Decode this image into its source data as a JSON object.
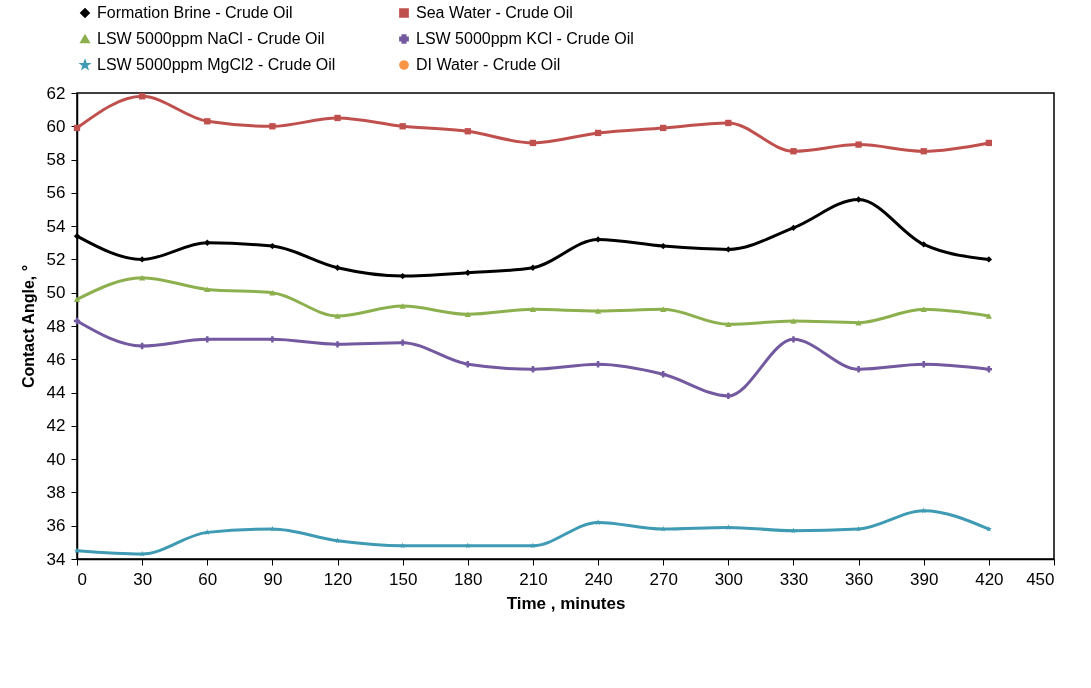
{
  "chart_data": {
    "type": "line",
    "xlabel": "Time , minutes",
    "ylabel": "Contact Angle, °",
    "x": [
      0,
      30,
      60,
      90,
      120,
      150,
      180,
      210,
      240,
      270,
      300,
      330,
      360,
      390,
      420
    ],
    "xlim": [
      0,
      450
    ],
    "xticks": [
      0,
      30,
      60,
      90,
      120,
      150,
      180,
      210,
      240,
      270,
      300,
      330,
      360,
      390,
      420,
      450
    ],
    "ylim": [
      34,
      62
    ],
    "yticks": [
      34,
      36,
      38,
      40,
      42,
      44,
      46,
      48,
      50,
      52,
      54,
      56,
      58,
      60,
      62
    ],
    "grid": false,
    "legend": "top",
    "line_style": "solid",
    "series": [
      {
        "name": "Formation Brine - Crude Oil",
        "color": "#000000",
        "marker": "diamond",
        "values": [
          53.4,
          52.0,
          53.0,
          52.8,
          51.5,
          51.0,
          51.2,
          51.5,
          53.2,
          52.8,
          52.6,
          53.9,
          55.6,
          52.9,
          52.0
        ]
      },
      {
        "name": "Sea Water - Crude Oil",
        "color": "#c0504d",
        "marker": "square",
        "values": [
          59.9,
          61.8,
          60.3,
          60.0,
          60.5,
          60.0,
          59.7,
          59.0,
          59.6,
          59.9,
          60.2,
          58.5,
          58.9,
          58.5,
          59.0
        ]
      },
      {
        "name": "LSW 5000ppm NaCl - Crude Oil",
        "color": "#8db04f",
        "marker": "triangle",
        "values": [
          49.6,
          50.9,
          50.2,
          50.0,
          48.6,
          49.2,
          48.7,
          49.0,
          48.9,
          49.0,
          48.1,
          48.3,
          48.2,
          49.0,
          48.6
        ]
      },
      {
        "name": "LSW 5000ppm KCl - Crude Oil",
        "color": "#7359a0",
        "marker": "cross",
        "values": [
          48.3,
          46.8,
          47.2,
          47.2,
          46.9,
          47.0,
          45.7,
          45.4,
          45.7,
          45.1,
          43.8,
          47.2,
          45.4,
          45.7,
          45.4
        ]
      },
      {
        "name": "LSW 5000ppm MgCl2 - Crude Oil",
        "color": "#3f9ab4",
        "marker": "star",
        "values": [
          34.5,
          34.3,
          35.6,
          35.8,
          35.1,
          34.8,
          34.8,
          34.8,
          36.2,
          35.8,
          35.9,
          35.7,
          35.8,
          36.9,
          35.8
        ]
      },
      {
        "name": "DI Water - Crude Oil",
        "color": "#f79646",
        "marker": "circle",
        "values": [
          null,
          null,
          null,
          null,
          null,
          null,
          null,
          null,
          null,
          null,
          null,
          null,
          null,
          null,
          null
        ]
      }
    ]
  }
}
